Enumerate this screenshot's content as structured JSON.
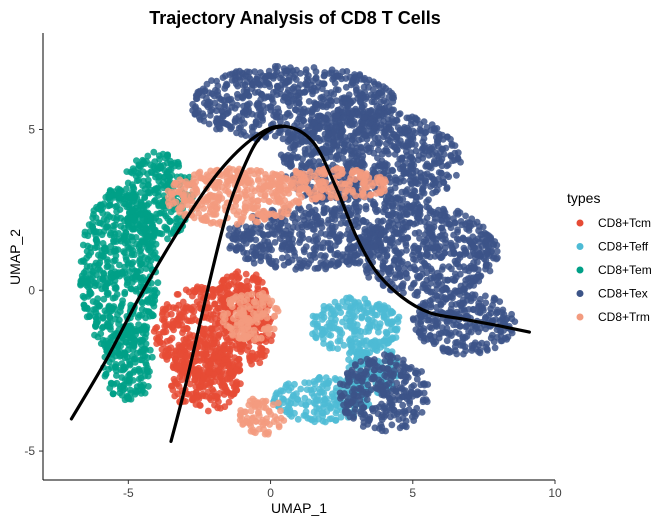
{
  "chart_data": {
    "type": "scatter",
    "title": "Trajectory Analysis of CD8 T Cells",
    "xlabel": "UMAP_1",
    "ylabel": "UMAP_2",
    "xlim": [
      -8.0,
      10.0
    ],
    "ylim": [
      -5.9,
      8.0
    ],
    "x_ticks": [
      -5,
      0,
      5,
      10
    ],
    "y_ticks": [
      -5,
      0,
      5
    ],
    "grid": false,
    "legend_title": "types",
    "legend_position": "right",
    "series": [
      {
        "name": "CD8+Tcm",
        "color": "#E64B35",
        "regions": [
          {
            "cx": -2.0,
            "cy": -1.3,
            "rx": 2.1,
            "ry": 1.5
          },
          {
            "cx": -2.3,
            "cy": -2.7,
            "rx": 1.3,
            "ry": 1.1
          },
          {
            "cx": -1.0,
            "cy": -0.3,
            "rx": 1.0,
            "ry": 0.9
          }
        ]
      },
      {
        "name": "CD8+Teff",
        "color": "#4DBBD5",
        "regions": [
          {
            "cx": 3.0,
            "cy": -1.1,
            "rx": 1.6,
            "ry": 0.9
          },
          {
            "cx": 1.8,
            "cy": -3.4,
            "rx": 1.7,
            "ry": 0.7
          },
          {
            "cx": 3.6,
            "cy": -2.4,
            "rx": 0.9,
            "ry": 0.9
          }
        ]
      },
      {
        "name": "CD8+Tem",
        "color": "#00A087",
        "regions": [
          {
            "cx": -5.3,
            "cy": 0.6,
            "rx": 1.4,
            "ry": 2.6
          },
          {
            "cx": -4.0,
            "cy": 2.9,
            "rx": 1.3,
            "ry": 1.4
          },
          {
            "cx": -5.0,
            "cy": -2.3,
            "rx": 0.9,
            "ry": 1.2
          }
        ]
      },
      {
        "name": "CD8+Tex",
        "color": "#3C5488",
        "regions": [
          {
            "cx": 0.8,
            "cy": 5.8,
            "rx": 3.6,
            "ry": 1.2
          },
          {
            "cx": 3.5,
            "cy": 4.0,
            "rx": 3.2,
            "ry": 1.6
          },
          {
            "cx": 5.5,
            "cy": 1.2,
            "rx": 2.5,
            "ry": 1.4
          },
          {
            "cx": 6.8,
            "cy": -1.0,
            "rx": 1.8,
            "ry": 1.0
          },
          {
            "cx": 1.2,
            "cy": 1.6,
            "rx": 2.8,
            "ry": 1.0
          },
          {
            "cx": 4.0,
            "cy": -3.2,
            "rx": 1.6,
            "ry": 1.2
          }
        ]
      },
      {
        "name": "CD8+Trm",
        "color": "#F39B7F",
        "regions": [
          {
            "cx": -1.3,
            "cy": 2.9,
            "rx": 2.4,
            "ry": 0.9
          },
          {
            "cx": 2.0,
            "cy": 3.3,
            "rx": 2.3,
            "ry": 0.5
          },
          {
            "cx": -0.7,
            "cy": -0.8,
            "rx": 1.0,
            "ry": 0.8
          },
          {
            "cx": -0.3,
            "cy": -3.9,
            "rx": 0.8,
            "ry": 0.6
          }
        ]
      }
    ],
    "trajectories": [
      {
        "name": "curve-1",
        "x": [
          -7.0,
          -5.8,
          -4.6,
          -3.2,
          -1.8,
          -0.5,
          0.5,
          1.5,
          2.3,
          3.0,
          3.7,
          4.6,
          5.6,
          6.8,
          8.0,
          9.1
        ],
        "y": [
          -4.0,
          -2.2,
          -0.2,
          1.9,
          3.7,
          4.8,
          5.1,
          4.6,
          3.2,
          1.7,
          0.6,
          -0.2,
          -0.7,
          -0.9,
          -1.1,
          -1.3
        ]
      },
      {
        "name": "curve-2",
        "x": [
          -3.5,
          -3.0,
          -2.5,
          -2.0,
          -1.5,
          -1.0,
          -0.5,
          0.0,
          0.5
        ],
        "y": [
          -4.7,
          -3.0,
          -1.1,
          0.8,
          2.5,
          3.7,
          4.6,
          5.0,
          5.1
        ]
      }
    ]
  }
}
